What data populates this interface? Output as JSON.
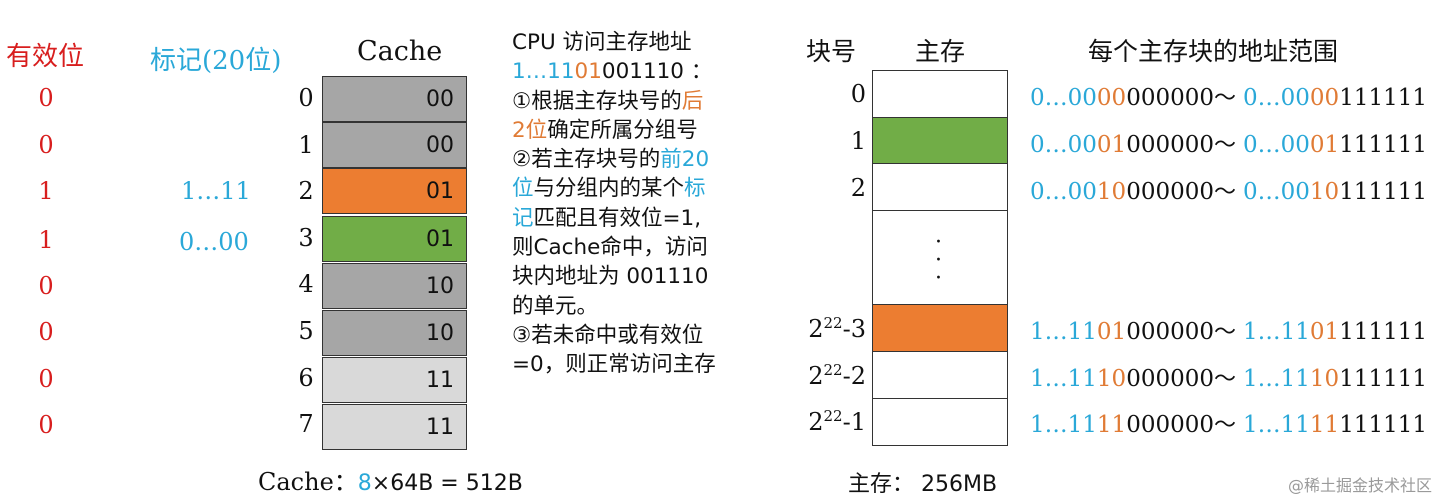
{
  "headers": {
    "valid_bit": "有效位",
    "tag": "标记(20位)",
    "cache": "Cache",
    "block_no": "块号",
    "main_memory": "主存",
    "address_range": "每个主存块的地址范围"
  },
  "cache_rows": [
    {
      "index": "0",
      "valid": "0",
      "tag": "",
      "group": "00",
      "color": "#a6a6a6"
    },
    {
      "index": "1",
      "valid": "0",
      "tag": "",
      "group": "00",
      "color": "#a6a6a6"
    },
    {
      "index": "2",
      "valid": "1",
      "tag": "1…11",
      "group": "01",
      "color": "#ec7d31"
    },
    {
      "index": "3",
      "valid": "1",
      "tag": "0…00",
      "group": "01",
      "color": "#71ad47"
    },
    {
      "index": "4",
      "valid": "0",
      "tag": "",
      "group": "10",
      "color": "#a6a6a6"
    },
    {
      "index": "5",
      "valid": "0",
      "tag": "",
      "group": "10",
      "color": "#a6a6a6"
    },
    {
      "index": "6",
      "valid": "0",
      "tag": "",
      "group": "11",
      "color": "#d9d9d9"
    },
    {
      "index": "7",
      "valid": "0",
      "tag": "",
      "group": "11",
      "color": "#d9d9d9"
    }
  ],
  "cache_caption": {
    "prefix": "Cache：",
    "count": "8",
    "rest": "×64B = 512B"
  },
  "description": {
    "line1": "CPU 访问主存地址",
    "addr_a": "1…11",
    "addr_b": "01",
    "addr_c": "001110 ：",
    "s1_a": "①根据主存块号的",
    "s1_b": "后",
    "s1_c": "2位",
    "s1_d": "确定所属分组号",
    "s2_a": "②若主存块号的",
    "s2_b": "前20",
    "s2_c": "位",
    "s2_d": "与分组内的某个",
    "s2_e": "标",
    "s2_f": "记",
    "s2_g": "匹配且有效位=1,",
    "s2_h": "则Cache命中，访问",
    "s2_i": "块内地址为 001110",
    "s2_j": "的单元。",
    "s3_a": "③若未命中或有效位",
    "s3_b": "=0，则正常访问主存"
  },
  "memory_blocks": [
    {
      "label": "0",
      "color": "#ffffff"
    },
    {
      "label": "1",
      "color": "#71ad47"
    },
    {
      "label": "2",
      "color": "#ffffff"
    },
    {
      "label": "⋮",
      "color": "#ffffff"
    },
    {
      "label_base": "2",
      "label_exp": "22",
      "label_tail": "-3",
      "color": "#ec7d31"
    },
    {
      "label_base": "2",
      "label_exp": "22",
      "label_tail": "-2",
      "color": "#ffffff"
    },
    {
      "label_base": "2",
      "label_exp": "22",
      "label_tail": "-1",
      "color": "#ffffff"
    }
  ],
  "ranges": [
    {
      "s1": "0…00",
      "s2": "00",
      "s3": "000000",
      "sep": "～ ",
      "e1": "0…00",
      "e2": "00",
      "e3": "111111"
    },
    {
      "s1": "0…00",
      "s2": "01",
      "s3": "000000",
      "sep": "～ ",
      "e1": "0…00",
      "e2": "01",
      "e3": "111111"
    },
    {
      "s1": "0…00",
      "s2": "10",
      "s3": "000000",
      "sep": "～ ",
      "e1": "0…00",
      "e2": "10",
      "e3": "111111"
    },
    {
      "s1": "1…11",
      "s2": "01",
      "s3": "000000",
      "sep": "～ ",
      "e1": "1…11",
      "e2": "01",
      "e3": "111111"
    },
    {
      "s1": "1…11",
      "s2": "10",
      "s3": "000000",
      "sep": "～ ",
      "e1": "1…11",
      "e2": "10",
      "e3": "111111"
    },
    {
      "s1": "1…11",
      "s2": "11",
      "s3": "000000",
      "sep": "～ ",
      "e1": "1…11",
      "e2": "11",
      "e3": "111111"
    }
  ],
  "memory_caption": "主存：  256MB",
  "watermark": "@稀土掘金技术社区",
  "colors": {
    "red": "#d81e1e",
    "blue": "#2aa8d8",
    "orange": "#e07b35",
    "green": "#71ad47",
    "cache_orange": "#ec7d31",
    "gray_dark": "#a6a6a6",
    "gray_light": "#d9d9d9"
  }
}
